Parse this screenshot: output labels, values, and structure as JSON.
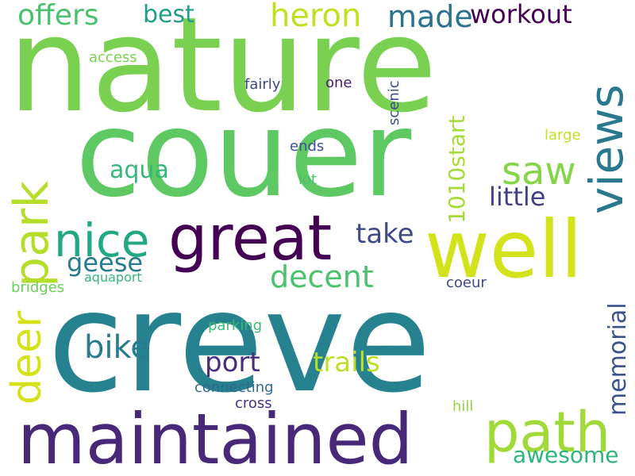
{
  "words": {
    "nature": {
      "text": "nature",
      "color": "#7ad151"
    },
    "couer": {
      "text": "couer",
      "color": "#5ec962"
    },
    "creve": {
      "text": "creve",
      "color": "#26828e"
    },
    "maintained": {
      "text": "maintained",
      "color": "#482878"
    },
    "well": {
      "text": "well",
      "color": "#d2e21b"
    },
    "great": {
      "text": "great",
      "color": "#440154"
    },
    "views": {
      "text": "views",
      "color": "#2a788e"
    },
    "path": {
      "text": "path",
      "color": "#a0da39"
    },
    "park": {
      "text": "park",
      "color": "#b5de2b"
    },
    "nice": {
      "text": "nice",
      "color": "#22a884"
    },
    "deer": {
      "text": "deer",
      "color": "#d5e21a"
    },
    "heron": {
      "text": "heron",
      "color": "#c2df23"
    },
    "made": {
      "text": "made",
      "color": "#2c728e"
    },
    "offers": {
      "text": "offers",
      "color": "#4ac16d"
    },
    "best": {
      "text": "best",
      "color": "#1f9e89"
    },
    "workout": {
      "text": "workout",
      "color": "#440154"
    },
    "saw": {
      "text": "saw",
      "color": "#86d549"
    },
    "aqua": {
      "text": "aqua",
      "color": "#35b779"
    },
    "geese": {
      "text": "geese",
      "color": "#297b8e"
    },
    "little": {
      "text": "little",
      "color": "#433e85"
    },
    "take": {
      "text": "take",
      "color": "#3e4989"
    },
    "decent": {
      "text": "decent",
      "color": "#4ac16d"
    },
    "1010start": {
      "text": "1010start",
      "color": "#a5db36"
    },
    "bike": {
      "text": "bike",
      "color": "#287c8e"
    },
    "port": {
      "text": "port",
      "color": "#472d7b"
    },
    "trails": {
      "text": "trails",
      "color": "#bddf26"
    },
    "memorial": {
      "text": "memorial",
      "color": "#3b528b"
    },
    "awesome": {
      "text": "awesome",
      "color": "#2fb47c"
    },
    "access": {
      "text": "access",
      "color": "#7ad151"
    },
    "fairly": {
      "text": "fairly",
      "color": "#3e4989"
    },
    "one": {
      "text": "one",
      "color": "#481f70"
    },
    "scenic": {
      "text": "scenic",
      "color": "#3e4c8a"
    },
    "large": {
      "text": "large",
      "color": "#bddf26"
    },
    "ends": {
      "text": "ends",
      "color": "#3b528b"
    },
    "lot": {
      "text": "lot",
      "color": "#4ac16d"
    },
    "bridges": {
      "text": "bridges",
      "color": "#6ccd5a"
    },
    "aquaport": {
      "text": "aquaport",
      "color": "#35b779"
    },
    "coeur": {
      "text": "coeur",
      "color": "#3e4989"
    },
    "parking": {
      "text": "parking",
      "color": "#3bbb75"
    },
    "connecting": {
      "text": "connecting",
      "color": "#31688e"
    },
    "cross": {
      "text": "cross",
      "color": "#46327e"
    },
    "hill": {
      "text": "hill",
      "color": "#8fd744"
    }
  }
}
